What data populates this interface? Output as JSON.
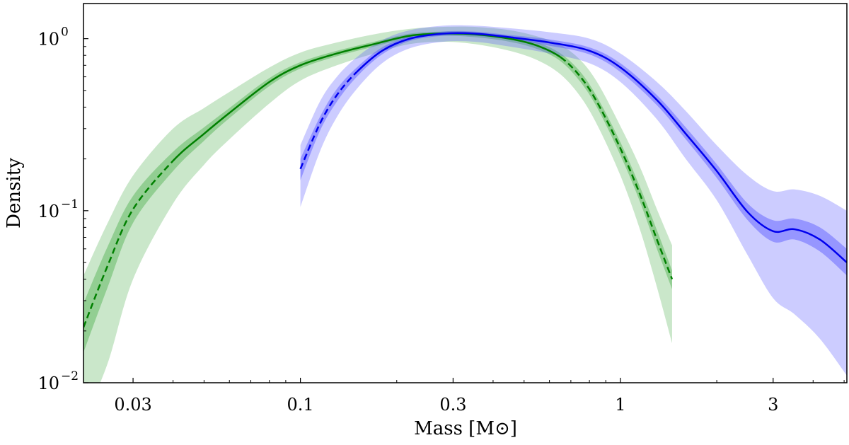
{
  "chart_data": {
    "type": "line",
    "xscale": "log",
    "yscale": "log",
    "xlim": [
      0.021,
      5.1
    ],
    "ylim": [
      0.01,
      1.6
    ],
    "xlabel": "Mass [M⊙]",
    "ylabel": "Density",
    "xticks": [
      {
        "value": 0.03,
        "label": "0.03"
      },
      {
        "value": 0.1,
        "label": "0.1"
      },
      {
        "value": 0.3,
        "label": "0.3"
      },
      {
        "value": 1,
        "label": "1"
      },
      {
        "value": 3,
        "label": "3"
      }
    ],
    "yticks": [
      {
        "value": 0.01,
        "label": "10",
        "exp": "−2"
      },
      {
        "value": 0.1,
        "label": "10",
        "exp": "−1"
      },
      {
        "value": 1,
        "label": "10",
        "exp": "0"
      }
    ],
    "series": [
      {
        "name": "green",
        "color": "#008000",
        "band_color": "#2ca02c",
        "points": [
          {
            "m": 0.021,
            "y": 0.021,
            "inner": [
              0.015,
              0.029
            ],
            "outer": [
              0.006,
              0.042
            ],
            "style": "dashed"
          },
          {
            "m": 0.025,
            "y": 0.048,
            "inner": [
              0.036,
              0.062
            ],
            "outer": [
              0.013,
              0.085
            ],
            "style": "dashed"
          },
          {
            "m": 0.03,
            "y": 0.102,
            "inner": [
              0.085,
              0.122
            ],
            "outer": [
              0.04,
              0.16
            ],
            "style": "dashed"
          },
          {
            "m": 0.04,
            "y": 0.195,
            "inner": [
              0.17,
              0.22
            ],
            "outer": [
              0.11,
              0.3
            ],
            "style": "dashed"
          },
          {
            "m": 0.05,
            "y": 0.28,
            "inner": [
              0.255,
              0.305
            ],
            "outer": [
              0.185,
              0.395
            ],
            "style": "solid"
          },
          {
            "m": 0.06,
            "y": 0.37,
            "inner": [
              0.345,
              0.395
            ],
            "outer": [
              0.26,
              0.49
            ],
            "style": "solid"
          },
          {
            "m": 0.08,
            "y": 0.56,
            "inner": [
              0.53,
              0.59
            ],
            "outer": [
              0.42,
              0.68
            ],
            "style": "solid"
          },
          {
            "m": 0.1,
            "y": 0.7,
            "inner": [
              0.67,
              0.73
            ],
            "outer": [
              0.57,
              0.83
            ],
            "style": "solid"
          },
          {
            "m": 0.13,
            "y": 0.82,
            "inner": [
              0.79,
              0.85
            ],
            "outer": [
              0.7,
              0.95
            ],
            "style": "solid"
          },
          {
            "m": 0.17,
            "y": 0.93,
            "inner": [
              0.9,
              0.96
            ],
            "outer": [
              0.82,
              1.06
            ],
            "style": "solid"
          },
          {
            "m": 0.22,
            "y": 1.04,
            "inner": [
              1.01,
              1.07
            ],
            "outer": [
              0.93,
              1.14
            ],
            "style": "solid"
          },
          {
            "m": 0.28,
            "y": 1.07,
            "inner": [
              1.04,
              1.1
            ],
            "outer": [
              0.96,
              1.17
            ],
            "style": "solid"
          },
          {
            "m": 0.35,
            "y": 1.06,
            "inner": [
              1.02,
              1.09
            ],
            "outer": [
              0.93,
              1.17
            ],
            "style": "solid"
          },
          {
            "m": 0.45,
            "y": 1.0,
            "inner": [
              0.96,
              1.03
            ],
            "outer": [
              0.85,
              1.12
            ],
            "style": "solid"
          },
          {
            "m": 0.55,
            "y": 0.91,
            "inner": [
              0.87,
              0.95
            ],
            "outer": [
              0.75,
              1.03
            ],
            "style": "solid"
          },
          {
            "m": 0.65,
            "y": 0.78,
            "inner": [
              0.74,
              0.82
            ],
            "outer": [
              0.62,
              0.92
            ],
            "style": "dashed"
          },
          {
            "m": 0.75,
            "y": 0.6,
            "inner": [
              0.56,
              0.64
            ],
            "outer": [
              0.46,
              0.75
            ],
            "style": "dashed"
          },
          {
            "m": 0.85,
            "y": 0.42,
            "inner": [
              0.39,
              0.45
            ],
            "outer": [
              0.31,
              0.55
            ],
            "style": "dashed"
          },
          {
            "m": 1.0,
            "y": 0.23,
            "inner": [
              0.21,
              0.25
            ],
            "outer": [
              0.16,
              0.31
            ],
            "style": "dashed"
          },
          {
            "m": 1.15,
            "y": 0.125,
            "inner": [
              0.113,
              0.138
            ],
            "outer": [
              0.078,
              0.18
            ],
            "style": "dashed"
          },
          {
            "m": 1.3,
            "y": 0.068,
            "inner": [
              0.06,
              0.077
            ],
            "outer": [
              0.036,
              0.102
            ],
            "style": "dashed"
          },
          {
            "m": 1.45,
            "y": 0.04,
            "inner": [
              0.035,
              0.045
            ],
            "outer": [
              0.017,
              0.063
            ],
            "style": "dashed"
          }
        ]
      },
      {
        "name": "blue",
        "color": "#0000ee",
        "band_color": "#5555ff",
        "points": [
          {
            "m": 0.1,
            "y": 0.175,
            "inner": [
              0.15,
              0.2
            ],
            "outer": [
              0.105,
              0.24
            ],
            "style": "dashed"
          },
          {
            "m": 0.115,
            "y": 0.32,
            "inner": [
              0.29,
              0.35
            ],
            "outer": [
              0.22,
              0.43
            ],
            "style": "dashed"
          },
          {
            "m": 0.13,
            "y": 0.47,
            "inner": [
              0.43,
              0.51
            ],
            "outer": [
              0.35,
              0.6
            ],
            "style": "dashed"
          },
          {
            "m": 0.15,
            "y": 0.64,
            "inner": [
              0.6,
              0.68
            ],
            "outer": [
              0.51,
              0.78
            ],
            "style": "dashed"
          },
          {
            "m": 0.18,
            "y": 0.85,
            "inner": [
              0.81,
              0.89
            ],
            "outer": [
              0.72,
              0.98
            ],
            "style": "solid"
          },
          {
            "m": 0.22,
            "y": 1.0,
            "inner": [
              0.97,
              1.03
            ],
            "outer": [
              0.88,
              1.12
            ],
            "style": "solid"
          },
          {
            "m": 0.28,
            "y": 1.07,
            "inner": [
              1.04,
              1.1
            ],
            "outer": [
              0.96,
              1.19
            ],
            "style": "solid"
          },
          {
            "m": 0.35,
            "y": 1.07,
            "inner": [
              1.04,
              1.1
            ],
            "outer": [
              0.96,
              1.19
            ],
            "style": "solid"
          },
          {
            "m": 0.45,
            "y": 1.02,
            "inner": [
              0.99,
              1.05
            ],
            "outer": [
              0.9,
              1.15
            ],
            "style": "solid"
          },
          {
            "m": 0.6,
            "y": 0.95,
            "inner": [
              0.91,
              0.99
            ],
            "outer": [
              0.82,
              1.09
            ],
            "style": "solid"
          },
          {
            "m": 0.8,
            "y": 0.85,
            "inner": [
              0.81,
              0.89
            ],
            "outer": [
              0.72,
              1.0
            ],
            "style": "solid"
          },
          {
            "m": 1.0,
            "y": 0.68,
            "inner": [
              0.64,
              0.72
            ],
            "outer": [
              0.56,
              0.82
            ],
            "style": "solid"
          },
          {
            "m": 1.3,
            "y": 0.44,
            "inner": [
              0.41,
              0.47
            ],
            "outer": [
              0.34,
              0.56
            ],
            "style": "solid"
          },
          {
            "m": 1.6,
            "y": 0.28,
            "inner": [
              0.26,
              0.305
            ],
            "outer": [
              0.2,
              0.38
            ],
            "style": "solid"
          },
          {
            "m": 2.0,
            "y": 0.17,
            "inner": [
              0.155,
              0.186
            ],
            "outer": [
              0.115,
              0.24
            ],
            "style": "solid"
          },
          {
            "m": 2.5,
            "y": 0.098,
            "inner": [
              0.088,
              0.11
            ],
            "outer": [
              0.055,
              0.16
            ],
            "style": "solid"
          },
          {
            "m": 3.0,
            "y": 0.076,
            "inner": [
              0.066,
              0.088
            ],
            "outer": [
              0.031,
              0.13
            ],
            "style": "solid"
          },
          {
            "m": 3.5,
            "y": 0.078,
            "inner": [
              0.068,
              0.09
            ],
            "outer": [
              0.025,
              0.133
            ],
            "style": "solid"
          },
          {
            "m": 4.2,
            "y": 0.068,
            "inner": [
              0.058,
              0.08
            ],
            "outer": [
              0.018,
              0.122
            ],
            "style": "solid"
          },
          {
            "m": 5.1,
            "y": 0.05,
            "inner": [
              0.042,
              0.06
            ],
            "outer": [
              0.011,
              0.1
            ],
            "style": "solid"
          }
        ]
      }
    ]
  }
}
